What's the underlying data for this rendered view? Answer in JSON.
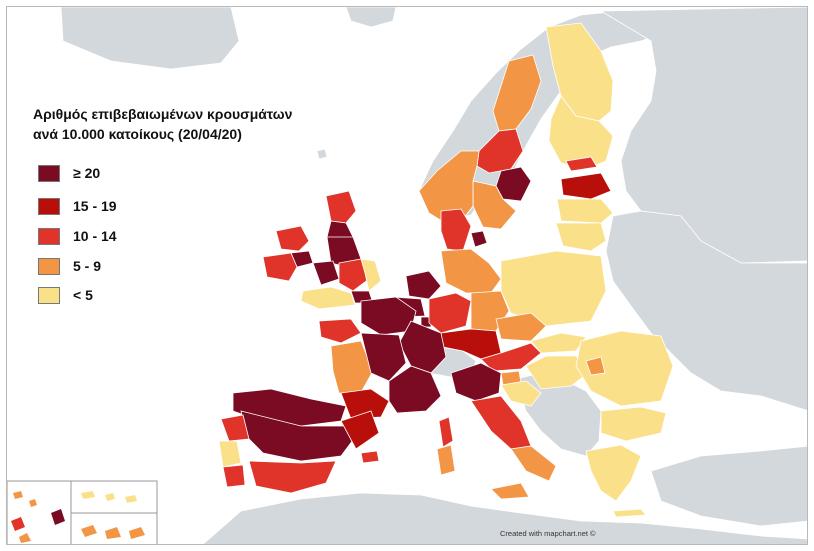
{
  "legend": {
    "title_line1": "Αριθμός επιβεβαιωμένων κρουσμάτων",
    "title_line2": "ανά 10.000 κατοίκους (20/04/20)",
    "items": [
      {
        "label": "≥ 20",
        "color": "#7b0a23"
      },
      {
        "label": "15 - 19",
        "color": "#b80f0a"
      },
      {
        "label": "10 - 14",
        "color": "#e0342a"
      },
      {
        "label": "5 - 9",
        "color": "#f29646"
      },
      {
        "label": "< 5",
        "color": "#fbe08a"
      }
    ]
  },
  "credit": "Created with mapchart.net ©",
  "colors": {
    "sea": "#ffffff",
    "non_data_land": "#d3d8dc",
    "border": "#b9b9b9"
  }
}
